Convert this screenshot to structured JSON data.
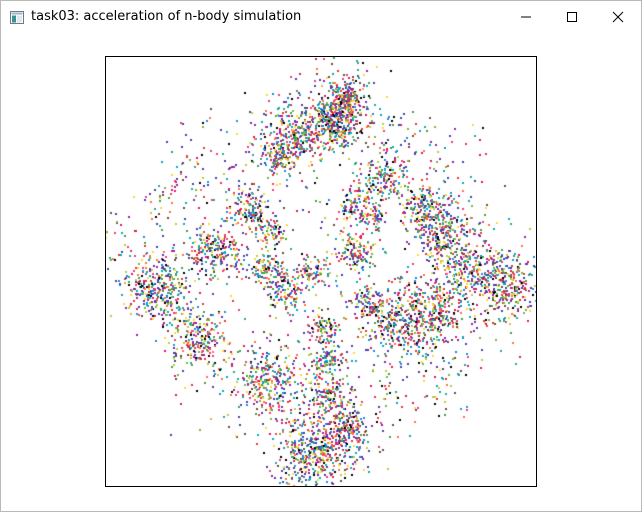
{
  "window": {
    "title": "task03: acceleration of n-body simulation",
    "icon": "app-window-icon"
  },
  "controls": {
    "minimize_icon": "minimize-icon",
    "maximize_icon": "maximize-icon",
    "close_icon": "close-icon"
  },
  "simulation": {
    "background": "#ffffff",
    "border_color": "#000000",
    "particle_colors": [
      "#d81b60",
      "#1e88e5",
      "#43a047",
      "#8e24aa",
      "#00acc1",
      "#fdd835",
      "#6d4c41",
      "#3949ab",
      "#e53935",
      "#7cb342",
      "#000000",
      "#ff7043",
      "#26a69a",
      "#5e35b1",
      "#c0ca33",
      "#ec407a"
    ]
  }
}
